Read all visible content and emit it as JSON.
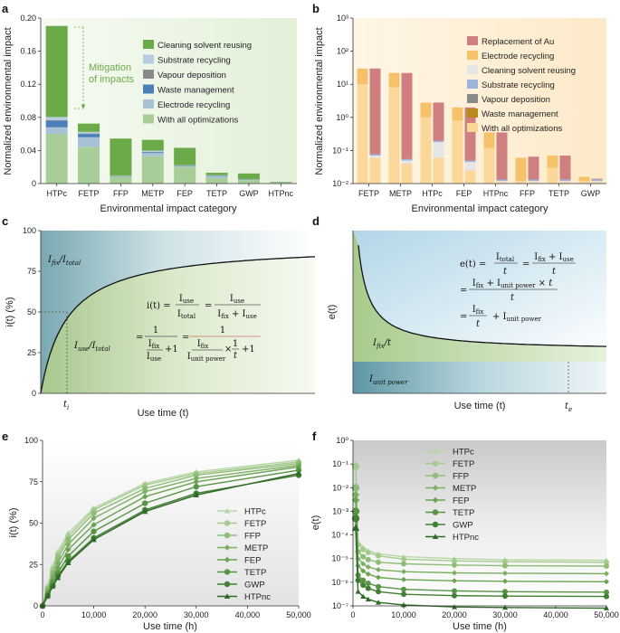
{
  "panels": {
    "a": "a",
    "b": "b",
    "c": "c",
    "d": "d",
    "e": "e",
    "f": "f"
  },
  "chart_data": [
    {
      "id": "a",
      "type": "bar",
      "ylabel": "Normalized environmental impact",
      "xlabel": "Environmental impact category",
      "ylim": [
        0,
        0.2
      ],
      "yticks": [
        "0",
        "0.04",
        "0.08",
        "0.12",
        "0.16",
        "0.20"
      ],
      "categories": [
        "HTPc",
        "FETP",
        "FFP",
        "METP",
        "FEP",
        "TETP",
        "GWP",
        "HTPnc"
      ],
      "series": [
        {
          "name": "With all optimizations",
          "color": "#a9cd98",
          "values": [
            0.06,
            0.044,
            0.008,
            0.033,
            0.02,
            0.007,
            0.004,
            0.001
          ]
        },
        {
          "name": "Electrode recycling",
          "color": "#a7c1d6",
          "values": [
            0.008,
            0.012,
            0.0005,
            0.004,
            0.001,
            0.002,
            0.0005,
            0.0003
          ]
        },
        {
          "name": "Waste management",
          "color": "#4a7fb8",
          "values": [
            0.008,
            0.004,
            0.0003,
            0.001,
            0.0005,
            0.0005,
            0.0003,
            0.0001
          ]
        },
        {
          "name": "Vapour deposition",
          "color": "#8a8a8a",
          "values": [
            0.0005,
            0.0005,
            0.0001,
            0.0003,
            0.0002,
            0.0001,
            0.0001,
            0.0001
          ]
        },
        {
          "name": "Substrate recycling",
          "color": "#b7cce3",
          "values": [
            0.004,
            0.002,
            0.0005,
            0.0015,
            0.0005,
            0.0005,
            0.0003,
            0.0001
          ]
        },
        {
          "name": "Cleaning solvent reusing",
          "color": "#6aaa48",
          "values": [
            0.11,
            0.01,
            0.045,
            0.013,
            0.021,
            0.003,
            0.007,
            0.0004
          ]
        }
      ],
      "legend": [
        "Cleaning solvent reusing",
        "Substrate recycling",
        "Vapour deposition",
        "Waste management",
        "Electrode recycling",
        "With all optimizations"
      ],
      "annotation": "Mitigation of impacts"
    },
    {
      "id": "b",
      "type": "bar",
      "yscale": "log",
      "ylabel": "Normalized environmental impact",
      "xlabel": "Environmental impact category",
      "ylim": [
        0.01,
        1000
      ],
      "yticks": [
        "10⁻²",
        "10⁻¹",
        "10⁰",
        "10¹",
        "10²",
        "10³"
      ],
      "categories": [
        "FETP",
        "METP",
        "HTPc",
        "FEP",
        "HTPnc",
        "FFP",
        "TETP",
        "GWP"
      ],
      "left_bar_top": [
        30,
        22,
        2.8,
        2.0,
        0.35,
        0.06,
        0.07,
        0.016
      ],
      "left_bar_orange_base": [
        10,
        8,
        1.0,
        0.8,
        0.12,
        0.012,
        0.03,
        0.012
      ],
      "right_bar_top": [
        30,
        22,
        2.8,
        2.0,
        0.35,
        0.065,
        0.07,
        0.014
      ],
      "right_bar_grey_top": [
        0.07,
        0.05,
        0.18,
        0.045,
        0.012,
        0.012,
        0.012,
        0.012
      ],
      "right_bar_orange_top": [
        0.06,
        0.04,
        0.06,
        0.025,
        0.011,
        0.011,
        0.011,
        0.011
      ],
      "legend": [
        "Replacement of Au",
        "Electrode recycling",
        "Cleaning solvent reusing",
        "Substrate recycling",
        "Vapour deposition",
        "Waste management",
        "With all optimizations"
      ],
      "legend_colors": [
        "#cf7f80",
        "#f5c26a",
        "#e6e6e6",
        "#9cb4d9",
        "#8a8a8a",
        "#b88a1a",
        "#fbd89a"
      ]
    },
    {
      "id": "c",
      "type": "line",
      "ylabel": "i(t) (%)",
      "xlabel": "Use time (t)",
      "ylim": [
        0,
        100
      ],
      "yticks": [
        "0",
        "25",
        "50",
        "75",
        "100"
      ],
      "curve": "i(t) = t/(a+t)",
      "t_label": "t",
      "t_sub": "i",
      "region_upper": {
        "main": "I",
        "sub1": "fix",
        "sep": "/",
        "main2": "I",
        "sub2": "total"
      },
      "region_lower": {
        "main": "I",
        "sub1": "use",
        "sep": "/",
        "main2": "I",
        "sub2": "total"
      },
      "equation": {
        "lhs": "i(t) =",
        "f1_num": "I",
        "f1_num_sub": "use",
        "f1_den": "I",
        "f1_den_sub": "total",
        "f2_num": "I",
        "f2_num_sub": "use",
        "f2_den": "I",
        "f2_den_sub": "fix",
        "f2_plus": " + I",
        "f2_plus_sub": "use",
        "f3_num": "1",
        "f3_den_a": "I",
        "f3_den_a_sub": "fix",
        "f3_den_b": "I",
        "f3_den_b_sub": "use",
        "f3_plus": "+1",
        "f4_num": "1",
        "f4_den_a": "I",
        "f4_den_a_sub": "fix",
        "f4_den_b": "I",
        "f4_den_b_sub": "unit power",
        "f4_times": "×",
        "f4_one": "1",
        "f4_t": "t",
        "f4_plus": "+1"
      }
    },
    {
      "id": "d",
      "type": "line",
      "ylabel": "e(t)",
      "xlabel": "Use time (t)",
      "curve": "e(t) = a/t + b",
      "t_label": "t",
      "t_sub": "e",
      "region_mid": {
        "main": "I",
        "sub": "fix",
        "rest": "/t"
      },
      "region_low": {
        "main": "I",
        "sub": "unit power"
      },
      "equation": {
        "lhs": "e(t) =",
        "l1_a": "I",
        "l1_a_sub": "total",
        "l1_a_den": "t",
        "l1_b": "I",
        "l1_b_sub": "fix",
        "l1_b_plus": " + I",
        "l1_b_plus_sub": "use",
        "l1_b_den": "t",
        "l2_prefix": "=",
        "l2_num": "I",
        "l2_num_sub": "fix",
        "l2_plus": " + I",
        "l2_plus_sub": "unit power",
        "l2_times": " × t",
        "l2_den": "t",
        "l3_prefix": "=",
        "l3_num": "I",
        "l3_num_sub": "fix",
        "l3_den": "t",
        "l3_plus": "+ I",
        "l3_plus_sub": "unit power"
      }
    },
    {
      "id": "e",
      "type": "line",
      "ylabel": "i(t) (%)",
      "xlabel": "Use time (h)",
      "xlim": [
        0,
        50000
      ],
      "ylim": [
        0,
        100
      ],
      "xticks": [
        "0",
        "10,000",
        "20,000",
        "30,000",
        "40,000",
        "50,000"
      ],
      "yticks": [
        "0",
        "25",
        "50",
        "75",
        "100"
      ],
      "x": [
        0,
        1000,
        2000,
        3000,
        5000,
        10000,
        20000,
        30000,
        50000
      ],
      "series": [
        {
          "name": "HTPc",
          "color": "#b7d6a6",
          "marker": "triangle",
          "values": [
            0,
            12,
            24,
            33,
            44,
            59,
            74,
            81,
            88
          ]
        },
        {
          "name": "FETP",
          "color": "#a4cb8e",
          "marker": "circle",
          "values": [
            0,
            11,
            22,
            31,
            42,
            58,
            73,
            80,
            87
          ]
        },
        {
          "name": "FFP",
          "color": "#8fbd77",
          "marker": "circle",
          "values": [
            0,
            10,
            20,
            29,
            40,
            56,
            71,
            79,
            86
          ]
        },
        {
          "name": "METP",
          "color": "#7caf62",
          "marker": "diamond",
          "values": [
            0,
            9,
            18,
            26,
            37,
            53,
            69,
            77,
            85
          ]
        },
        {
          "name": "FEP",
          "color": "#6aa352",
          "marker": "diamond",
          "values": [
            0,
            8,
            16,
            23,
            34,
            49,
            66,
            75,
            84
          ]
        },
        {
          "name": "TETP",
          "color": "#579443",
          "marker": "circle",
          "values": [
            0,
            7,
            14,
            20,
            30,
            45,
            62,
            72,
            82
          ]
        },
        {
          "name": "GWP",
          "color": "#417f32",
          "marker": "circle",
          "values": [
            0,
            6,
            12,
            18,
            27,
            41,
            58,
            68,
            79
          ]
        },
        {
          "name": "HTPnc",
          "color": "#2e6a25",
          "marker": "triangle",
          "values": [
            0,
            6,
            12,
            17,
            26,
            40,
            57,
            67,
            80
          ]
        }
      ]
    },
    {
      "id": "f",
      "type": "line",
      "yscale": "log",
      "ylabel": "e(t)",
      "xlabel": "Use time (h)",
      "xlim": [
        0,
        50000
      ],
      "ylim": [
        1e-07,
        1
      ],
      "xticks": [
        "0",
        "10,000",
        "20,000",
        "30,000",
        "40,000",
        "50,000"
      ],
      "yticks": [
        "10⁻⁷",
        "10⁻⁶",
        "10⁻⁵",
        "10⁻⁴",
        "10⁻³",
        "10⁻²",
        "10⁻¹",
        "10⁰"
      ],
      "x": [
        1,
        1000,
        2000,
        3000,
        5000,
        10000,
        20000,
        30000,
        50000
      ],
      "series": [
        {
          "name": "HTPc",
          "color": "#b7d6a6",
          "marker": "triangle",
          "values": [
            0.1,
            5e-05,
            3e-05,
            2.2e-05,
            1.6e-05,
            1.2e-05,
            1e-05,
            9e-06,
            8.5e-06
          ]
        },
        {
          "name": "FETP",
          "color": "#a4cb8e",
          "marker": "circle",
          "values": [
            0.08,
            4e-05,
            2.4e-05,
            1.8e-05,
            1.3e-05,
            9.5e-06,
            8e-06,
            7.4e-06,
            7e-06
          ]
        },
        {
          "name": "FFP",
          "color": "#8fbd77",
          "marker": "circle",
          "values": [
            0.01,
            2e-05,
            1.2e-05,
            9e-06,
            7e-06,
            6e-06,
            5.3e-06,
            5e-06,
            4.8e-06
          ]
        },
        {
          "name": "METP",
          "color": "#7caf62",
          "marker": "diamond",
          "values": [
            0.005,
            1e-05,
            6e-06,
            4.4e-06,
            3.4e-06,
            2.8e-06,
            2.5e-06,
            2.4e-06,
            2.3e-06
          ]
        },
        {
          "name": "FEP",
          "color": "#6aa352",
          "marker": "diamond",
          "values": [
            0.003,
            5e-06,
            3e-06,
            2.2e-06,
            1.6e-06,
            1.3e-06,
            1.15e-06,
            1.1e-06,
            1.05e-06
          ]
        },
        {
          "name": "TETP",
          "color": "#579443",
          "marker": "circle",
          "values": [
            0.001,
            2e-06,
            1.2e-06,
            9e-07,
            6.5e-07,
            5e-07,
            4.3e-07,
            4e-07,
            3.8e-07
          ]
        },
        {
          "name": "GWP",
          "color": "#417f32",
          "marker": "circle",
          "values": [
            0.0005,
            1.2e-06,
            7.5e-07,
            5.5e-07,
            4e-07,
            3.1e-07,
            2.7e-07,
            2.6e-07,
            2.5e-07
          ]
        },
        {
          "name": "HTPnc",
          "color": "#2e6a25",
          "marker": "triangle",
          "values": [
            0.0002,
            4e-07,
            2.5e-07,
            1.9e-07,
            1.4e-07,
            1.1e-07,
            9e-08,
            8.5e-08,
            8e-08
          ]
        }
      ]
    }
  ]
}
